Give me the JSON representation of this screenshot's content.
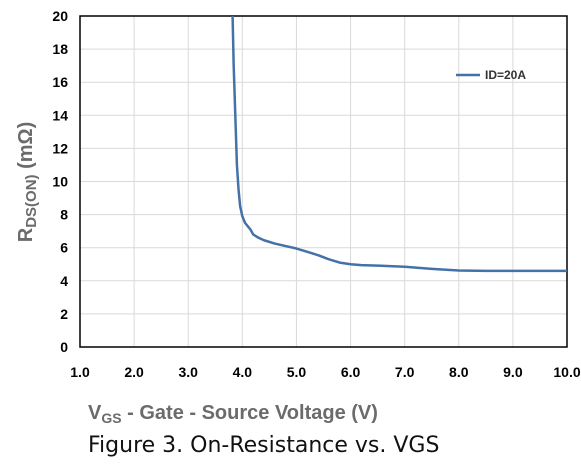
{
  "chart_data": {
    "type": "line",
    "title": "",
    "ylabel": {
      "main": "R",
      "sub": "DS(ON)",
      "unit": "(mΩ)"
    },
    "xlabel": {
      "main": "V",
      "sub": "GS",
      "rest": "- Gate - Source Voltage (V)"
    },
    "xlim": [
      1.0,
      10.0
    ],
    "ylim": [
      0,
      20
    ],
    "x_ticks": [
      "1.0",
      "2.0",
      "3.0",
      "4.0",
      "5.0",
      "6.0",
      "7.0",
      "8.0",
      "9.0",
      "10.0"
    ],
    "y_ticks": [
      "0",
      "2",
      "4",
      "6",
      "8",
      "10",
      "12",
      "14",
      "16",
      "18",
      "20"
    ],
    "grid": true,
    "legend_position": "top-right",
    "series": [
      {
        "name": "ID=20A",
        "color": "#4472a8",
        "x": [
          3.82,
          3.84,
          3.86,
          3.88,
          3.9,
          3.93,
          3.96,
          4.0,
          4.05,
          4.1,
          4.15,
          4.2,
          4.3,
          4.4,
          4.6,
          4.8,
          5.0,
          5.2,
          5.4,
          5.6,
          5.8,
          6.0,
          6.2,
          6.5,
          7.0,
          7.5,
          8.0,
          8.5,
          9.0,
          9.5,
          10.0
        ],
        "y": [
          20.0,
          17.0,
          15.0,
          13.0,
          11.0,
          9.5,
          8.5,
          7.9,
          7.5,
          7.3,
          7.1,
          6.8,
          6.6,
          6.45,
          6.25,
          6.1,
          5.95,
          5.75,
          5.55,
          5.3,
          5.1,
          5.0,
          4.95,
          4.92,
          4.85,
          4.72,
          4.62,
          4.6,
          4.6,
          4.6,
          4.6
        ]
      }
    ]
  },
  "caption": "Figure 3. On-Resistance vs. VGS"
}
